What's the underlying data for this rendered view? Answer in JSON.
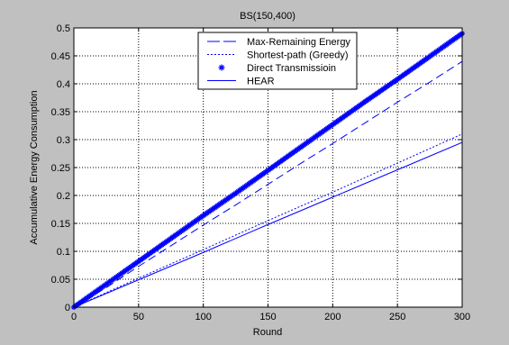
{
  "window": {
    "background": "#c0c0c0"
  },
  "chart_data": {
    "type": "line",
    "title": "BS(150,400)",
    "xlabel": "Round",
    "ylabel": "Accumulative Energy Consumption",
    "xlim": [
      0,
      300
    ],
    "ylim": [
      0,
      0.5
    ],
    "xticks": [
      0,
      50,
      100,
      150,
      200,
      250,
      300
    ],
    "yticks": [
      0,
      0.05,
      0.1,
      0.15,
      0.2,
      0.25,
      0.3,
      0.35,
      0.4,
      0.45,
      0.5
    ],
    "xtick_labels": [
      "0",
      "50",
      "100",
      "150",
      "200",
      "250",
      "300"
    ],
    "ytick_labels": [
      "0",
      "0.05",
      "0.1",
      "0.15",
      "0.2",
      "0.25",
      "0.3",
      "0.35",
      "0.4",
      "0.45",
      "0.5"
    ],
    "grid": true,
    "grid_style": "dotted",
    "legend_position": "top-center",
    "series": [
      {
        "name": "Max-Remaining Energy",
        "style": "dash",
        "color": "#0000ff",
        "x": [
          0,
          25,
          50,
          75,
          100,
          125,
          150,
          175,
          200,
          225,
          250,
          275,
          300
        ],
        "y": [
          0,
          0.035,
          0.073,
          0.11,
          0.147,
          0.183,
          0.22,
          0.257,
          0.293,
          0.33,
          0.367,
          0.403,
          0.44
        ]
      },
      {
        "name": "Shortest-path (Greedy)",
        "style": "dotted",
        "color": "#0000ff",
        "x": [
          0,
          50,
          100,
          150,
          200,
          250,
          300
        ],
        "y": [
          0,
          0.052,
          0.103,
          0.155,
          0.206,
          0.258,
          0.31
        ]
      },
      {
        "name": "Direct Transmissioin",
        "style": "star",
        "color": "#0000ff",
        "x": [
          0,
          25,
          50,
          75,
          100,
          125,
          150,
          175,
          200,
          225,
          250,
          275,
          300
        ],
        "y": [
          0,
          0.041,
          0.082,
          0.123,
          0.164,
          0.204,
          0.245,
          0.286,
          0.327,
          0.368,
          0.408,
          0.449,
          0.49
        ]
      },
      {
        "name": "HEAR",
        "style": "solid",
        "color": "#0000ff",
        "x": [
          0,
          50,
          100,
          150,
          200,
          250,
          300
        ],
        "y": [
          0,
          0.049,
          0.098,
          0.148,
          0.197,
          0.246,
          0.295
        ]
      }
    ]
  }
}
